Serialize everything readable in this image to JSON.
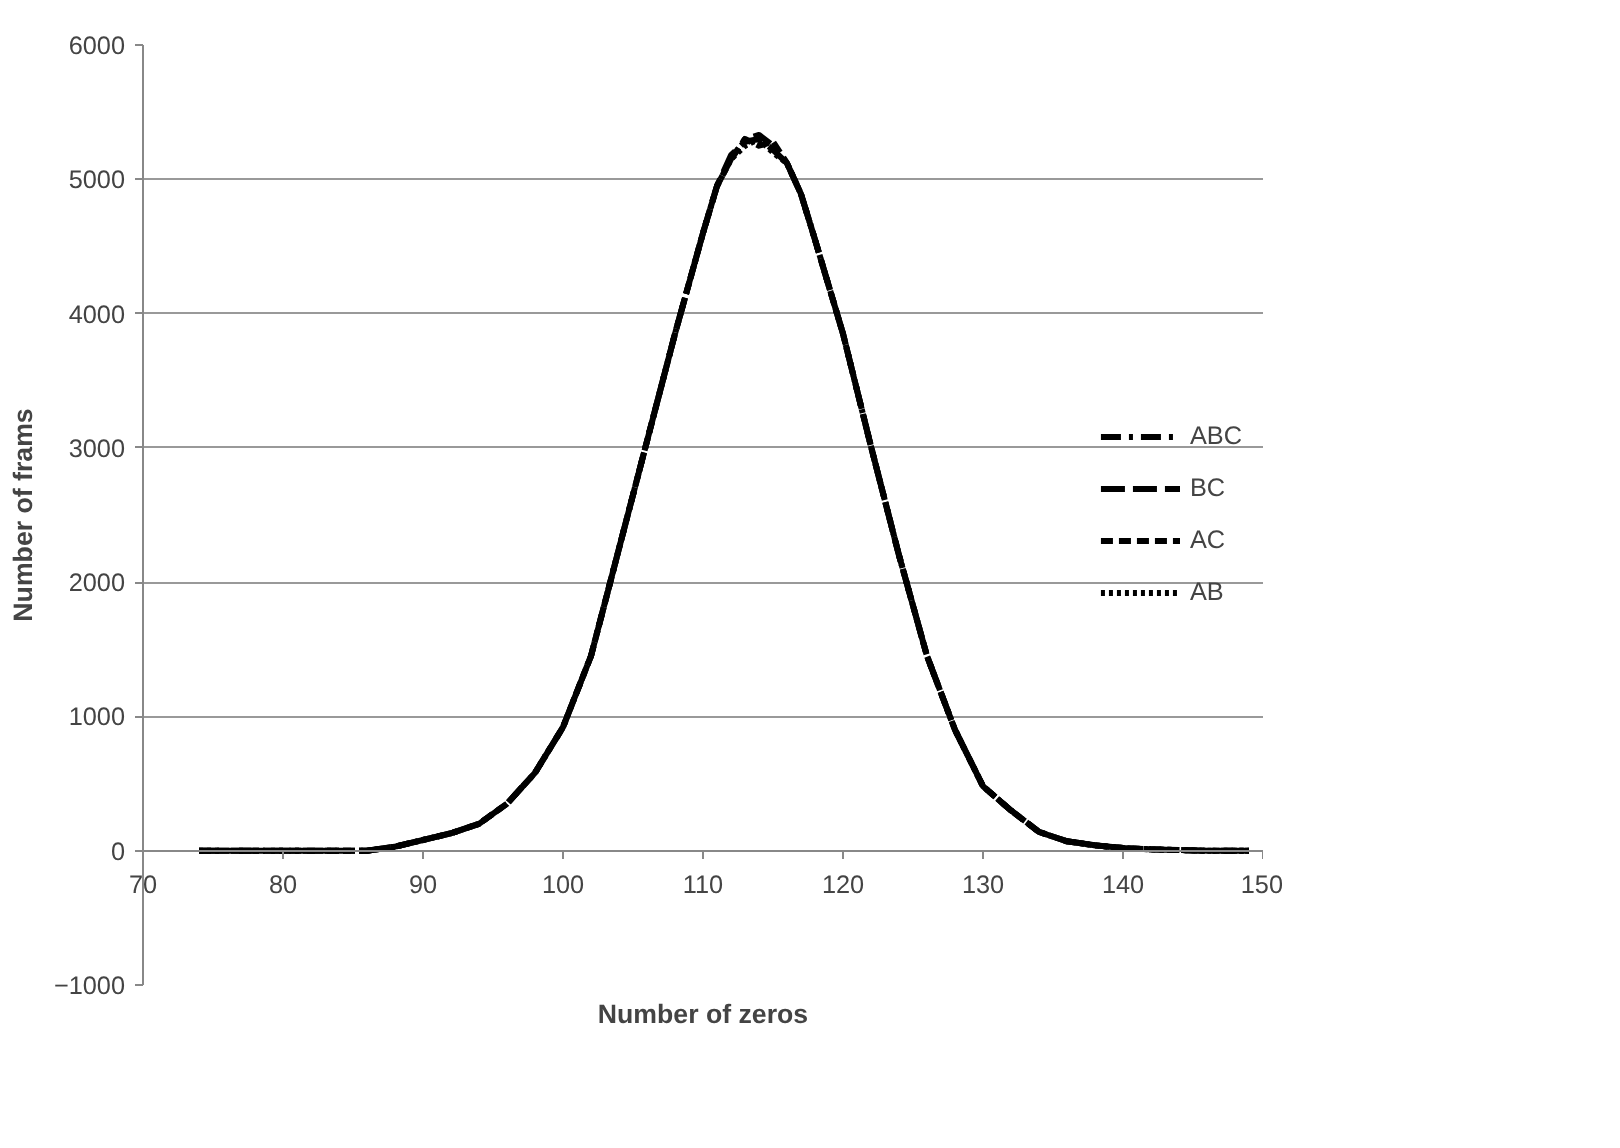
{
  "chart_data": {
    "type": "line",
    "xlabel": "Number of zeros",
    "ylabel": "Number of frams",
    "x": [
      74,
      76,
      78,
      80,
      82,
      84,
      86,
      88,
      90,
      92,
      94,
      96,
      98,
      100,
      102,
      104,
      106,
      108,
      110,
      111,
      112,
      113,
      114,
      115,
      116,
      117,
      118,
      120,
      122,
      124,
      126,
      128,
      130,
      132,
      134,
      136,
      138,
      140,
      142,
      144,
      146,
      148,
      149
    ],
    "series": [
      {
        "name": "ABC",
        "color": "#000000",
        "line_style": "dashdot",
        "values": [
          0,
          0,
          0,
          0,
          0,
          0,
          0,
          30,
          80,
          130,
          200,
          350,
          580,
          920,
          1450,
          2250,
          3050,
          3850,
          4600,
          4950,
          5150,
          5300,
          5330,
          5250,
          5120,
          4890,
          4550,
          3850,
          3010,
          2200,
          1450,
          900,
          480,
          300,
          140,
          70,
          40,
          20,
          10,
          5,
          0,
          0,
          0
        ]
      },
      {
        "name": "BC",
        "color": "#000000",
        "line_style": "longdash",
        "values": [
          0,
          0,
          0,
          0,
          0,
          0,
          0,
          30,
          80,
          130,
          200,
          350,
          580,
          920,
          1450,
          2250,
          3050,
          3850,
          4600,
          4950,
          5180,
          5280,
          5300,
          5220,
          5120,
          4890,
          4550,
          3850,
          3010,
          2200,
          1450,
          900,
          480,
          300,
          140,
          70,
          40,
          20,
          10,
          5,
          0,
          0,
          0
        ]
      },
      {
        "name": "AC",
        "color": "#000000",
        "line_style": "dashed",
        "values": [
          0,
          0,
          0,
          0,
          0,
          0,
          0,
          30,
          80,
          130,
          200,
          350,
          580,
          920,
          1450,
          2250,
          3050,
          3850,
          4600,
          4950,
          5150,
          5300,
          5250,
          5280,
          5120,
          4890,
          4550,
          3850,
          3010,
          2200,
          1450,
          900,
          480,
          300,
          140,
          70,
          40,
          20,
          10,
          5,
          0,
          0,
          0
        ]
      },
      {
        "name": "AB",
        "color": "#000000",
        "line_style": "dotted",
        "values": [
          0,
          0,
          0,
          0,
          0,
          0,
          0,
          30,
          80,
          130,
          200,
          350,
          580,
          920,
          1450,
          2250,
          3050,
          3850,
          4600,
          4950,
          5150,
          5250,
          5300,
          5200,
          5120,
          4890,
          4550,
          3850,
          3010,
          2200,
          1450,
          900,
          480,
          300,
          140,
          70,
          40,
          20,
          10,
          5,
          0,
          0,
          0
        ]
      }
    ],
    "xlim": [
      70,
      150
    ],
    "xticks": [
      70,
      80,
      90,
      100,
      110,
      120,
      130,
      140,
      150
    ],
    "ylim": [
      -1000,
      6000
    ],
    "yticks": [
      -1000,
      0,
      1000,
      2000,
      3000,
      4000,
      5000,
      6000
    ],
    "grid": "y",
    "legend": "right",
    "marker": "none"
  }
}
